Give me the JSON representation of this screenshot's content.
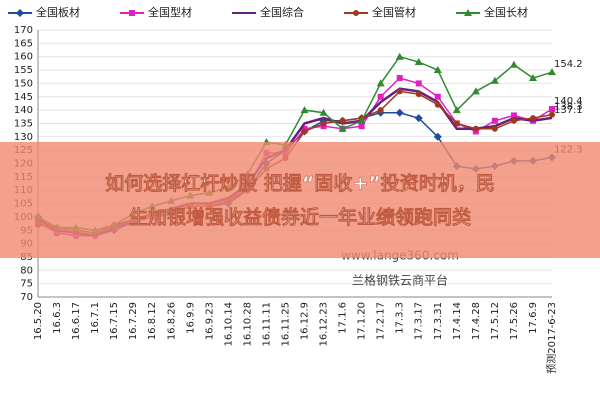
{
  "chart_data": {
    "type": "line",
    "categories": [
      "16.5.20",
      "16.6.3",
      "16.6.17",
      "16.7.1",
      "16.7.15",
      "16.7.29",
      "16.8.12",
      "16.8.26",
      "16.9.9",
      "16.9.23",
      "16.10.14",
      "16.10.28",
      "16.11.11",
      "16.11.25",
      "16.12.9",
      "16.12.23",
      "17.1.6",
      "17.1.20",
      "17.2.17",
      "17.3.3",
      "17.3.17",
      "17.3.31",
      "17.4.14",
      "17.4.28",
      "17.5.12",
      "17.5.26",
      "17.6.9",
      "预测2017-6-23"
    ],
    "series": [
      {
        "name": "全国板材",
        "color": "#1f4e9c",
        "marker": "diamond",
        "values": [
          100,
          94,
          93,
          93,
          95,
          98,
          100,
          101,
          104,
          104,
          105,
          110,
          120,
          125,
          132,
          136,
          136,
          137,
          139,
          139,
          137,
          130,
          119,
          118,
          119,
          121,
          121,
          122.3
        ]
      },
      {
        "name": "全国型材",
        "color": "#e020c0",
        "marker": "square",
        "values": [
          98,
          94,
          93,
          93,
          96,
          98,
          100,
          102,
          104,
          104,
          106,
          111,
          124,
          124,
          133,
          134,
          133,
          134,
          145,
          152,
          150,
          145,
          135,
          132,
          136,
          138,
          136,
          140.4
        ]
      },
      {
        "name": "全国综合",
        "color": "#6a1f7a",
        "marker": "none",
        "values": [
          99,
          95,
          94,
          93,
          96,
          99,
          101,
          103,
          105,
          105,
          107,
          112,
          122,
          125,
          135,
          137,
          135,
          136,
          143,
          148,
          147,
          143,
          133,
          133,
          134,
          137,
          136,
          137.1
        ]
      },
      {
        "name": "全国管材",
        "color": "#a0381e",
        "marker": "circle",
        "values": [
          97,
          96,
          95,
          94,
          97,
          99,
          101,
          102,
          104,
          104,
          106,
          110,
          118,
          122,
          132,
          135,
          136,
          137,
          140,
          147,
          146,
          142,
          135,
          133,
          133,
          136,
          137,
          138.3
        ]
      },
      {
        "name": "全国长材",
        "color": "#2e8b2e",
        "marker": "triangle",
        "values": [
          100,
          96,
          96,
          95,
          97,
          101,
          104,
          106,
          108,
          109,
          111,
          116,
          128,
          127,
          140,
          139,
          133,
          136,
          150,
          160,
          158,
          155,
          140,
          147,
          151,
          157,
          152,
          154.2
        ]
      }
    ],
    "ylim": [
      70,
      170
    ],
    "yticks": [
      70,
      75,
      80,
      85,
      90,
      95,
      100,
      105,
      110,
      115,
      120,
      125,
      130,
      135,
      140,
      145,
      150,
      155,
      160,
      165,
      170
    ],
    "grid": true,
    "watermark": [
      "www.lange360.com",
      "兰格钢铁云商平台"
    ]
  },
  "overlay": {
    "headline": [
      "如何选择杠杆炒股 把握“固收+”投资时机，民",
      "生加银增强收益债券近一年业绩领跑同类"
    ]
  }
}
